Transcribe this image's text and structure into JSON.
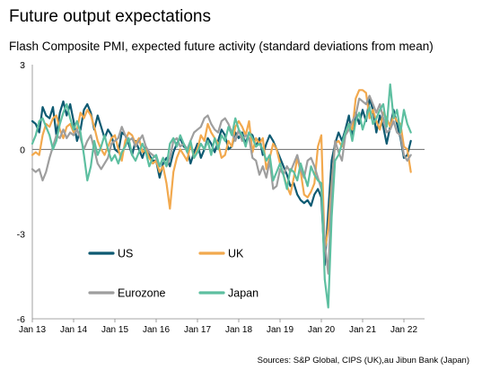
{
  "title": "Future output expectations",
  "subtitle": "Flash Composite PMI, expected future activity (standard deviations from mean)",
  "source": "Sources: S&P Global, CIPS (UK),au Jibun Bank (Japan)",
  "chart_data": {
    "type": "line",
    "title": "Future output expectations",
    "subtitle": "Flash Composite PMI, expected future activity (standard deviations from mean)",
    "xlabel": "",
    "ylabel": "",
    "ylim": [
      -6,
      3
    ],
    "yticks": [
      3,
      0,
      -3,
      -6
    ],
    "xlim": [
      "2013-01",
      "2022-07"
    ],
    "xtick_labels": [
      "Jan 13",
      "Jan 14",
      "Jan 15",
      "Jan 16",
      "Jan 17",
      "Jan 18",
      "Jan 19",
      "Jan 20",
      "Jan 21",
      "Jan 22"
    ],
    "grid": false,
    "legend_position": "bottom-left",
    "series": [
      {
        "name": "US",
        "color": "#0e5a72",
        "start": "2013-01",
        "frequency": "monthly",
        "values": [
          1.0,
          0.9,
          0.6,
          1.5,
          1.2,
          1.1,
          1.5,
          0.5,
          1.3,
          1.7,
          1.2,
          1.6,
          1.0,
          0.3,
          0.7,
          1.4,
          1.6,
          1.3,
          0.7,
          1.2,
          0.8,
          0.4,
          0.7,
          0.5,
          0.0,
          -0.1,
          0.6,
          0.5,
          0.2,
          -0.2,
          0.3,
          0.0,
          -0.3,
          0.1,
          -0.2,
          -0.4,
          -0.4,
          -1.0,
          -0.5,
          -0.3,
          -0.6,
          -0.1,
          0.2,
          0.4,
          0.1,
          0.0,
          -0.5,
          -0.1,
          0.2,
          -0.3,
          0.0,
          0.4,
          0.2,
          -0.1,
          0.3,
          0.7,
          0.5,
          0.0,
          0.1,
          0.6,
          0.4,
          0.6,
          0.2,
          0.6,
          0.5,
          0.1,
          0.4,
          -0.2,
          0.2,
          0.5,
          0.3,
          0.0,
          -0.3,
          -0.6,
          -0.9,
          -1.3,
          -1.2,
          -1.6,
          -1.8,
          -1.9,
          -1.8,
          -2.0,
          -1.6,
          -1.4,
          -1.7,
          -4.1,
          -2.2,
          -0.4,
          0.2,
          0.6,
          0.3,
          0.7,
          1.2,
          0.4,
          1.3,
          0.9,
          1.4,
          1.0,
          1.8,
          1.4,
          0.6,
          1.2,
          0.8,
          0.2,
          0.8,
          1.4,
          0.9,
          0.4,
          -0.3,
          -0.2,
          0.3
        ]
      },
      {
        "name": "UK",
        "color": "#f2a94e",
        "start": "2013-01",
        "frequency": "monthly",
        "values": [
          -0.2,
          -0.1,
          -0.2,
          0.5,
          0.9,
          0.8,
          1.1,
          1.2,
          0.7,
          0.4,
          0.8,
          0.9,
          0.6,
          0.7,
          1.3,
          1.1,
          1.4,
          1.2,
          0.8,
          0.3,
          0.0,
          -0.2,
          0.1,
          0.4,
          0.5,
          0.0,
          -0.4,
          0.3,
          0.6,
          0.5,
          0.2,
          0.4,
          -0.1,
          0.0,
          -0.3,
          -0.5,
          -0.4,
          -0.8,
          -0.6,
          -1.2,
          -2.1,
          -0.8,
          -0.3,
          0.0,
          -0.2,
          -0.4,
          0.2,
          -0.3,
          0.0,
          0.5,
          0.3,
          0.9,
          0.6,
          0.4,
          0.2,
          -0.3,
          -0.2,
          0.3,
          0.1,
          0.8,
          1.0,
          0.8,
          0.5,
          1.0,
          -0.1,
          0.4,
          0.2,
          0.4,
          -0.7,
          -0.3,
          0.2,
          0.0,
          -0.5,
          -0.9,
          -1.3,
          -1.6,
          -1.0,
          -0.3,
          -0.8,
          -1.6,
          -1.7,
          -1.5,
          -1.2,
          0.1,
          0.5,
          -3.6,
          -2.8,
          -1.2,
          0.2,
          0.3,
          0.1,
          0.6,
          0.9,
          0.7,
          1.8,
          2.1,
          2.1,
          2.0,
          1.1,
          1.4,
          1.0,
          0.7,
          1.3,
          1.1,
          0.8,
          1.2,
          1.0,
          0.9,
          0.1,
          0.0,
          -0.8
        ]
      },
      {
        "name": "Eurozone",
        "color": "#9e9e9e",
        "start": "2013-01",
        "frequency": "monthly",
        "values": [
          -0.7,
          -0.8,
          -0.7,
          -1.1,
          -0.8,
          -0.3,
          0.1,
          0.5,
          0.4,
          0.7,
          0.4,
          0.6,
          0.5,
          0.7,
          0.4,
          0.0,
          0.3,
          0.5,
          0.0,
          -0.5,
          -0.7,
          -0.5,
          -0.3,
          0.2,
          0.3,
          0.4,
          0.8,
          0.5,
          0.3,
          0.4,
          0.1,
          0.3,
          0.5,
          0.1,
          -0.1,
          -0.2,
          -0.3,
          -0.6,
          -0.3,
          -0.6,
          -0.3,
          0.3,
          0.4,
          0.1,
          0.2,
          0.0,
          0.3,
          0.6,
          0.7,
          0.8,
          1.1,
          1.2,
          0.9,
          0.7,
          0.6,
          1.0,
          1.1,
          0.9,
          0.6,
          0.3,
          0.7,
          0.3,
          0.5,
          0.4,
          -0.3,
          -0.4,
          -0.9,
          -0.6,
          -1.0,
          -0.4,
          -1.4,
          -1.3,
          -0.7,
          -0.9,
          -0.6,
          -0.8,
          -0.5,
          -0.2,
          -0.7,
          -1.0,
          -0.4,
          -0.3,
          -0.6,
          -1.0,
          -1.4,
          -3.3,
          -4.4,
          -1.4,
          0.3,
          -0.1,
          -0.4,
          0.5,
          0.7,
          1.0,
          1.2,
          1.8,
          1.7,
          1.6,
          1.9,
          1.6,
          1.3,
          1.6,
          1.1,
          0.6,
          0.7,
          1.0,
          0.6,
          0.5,
          -0.2,
          -0.4,
          -0.2
        ]
      },
      {
        "name": "Japan",
        "color": "#5dbfa0",
        "start": "2013-01",
        "frequency": "monthly",
        "values": [
          0.2,
          0.5,
          1.0,
          1.1,
          0.8,
          0.5,
          0.0,
          0.3,
          0.9,
          1.3,
          1.6,
          1.1,
          0.7,
          1.0,
          0.6,
          -0.2,
          -1.1,
          -0.6,
          0.3,
          -0.2,
          0.1,
          0.5,
          0.0,
          -0.4,
          -0.2,
          -0.5,
          -0.1,
          0.1,
          0.4,
          -0.2,
          -0.4,
          -0.1,
          0.2,
          -0.1,
          -0.6,
          -0.3,
          -0.2,
          -0.6,
          -0.3,
          -0.6,
          0.2,
          0.4,
          0.1,
          0.5,
          0.2,
          -0.1,
          0.3,
          -0.3,
          -0.1,
          0.2,
          0.0,
          0.3,
          -0.2,
          0.4,
          0.0,
          0.5,
          0.3,
          0.8,
          0.5,
          1.1,
          0.7,
          0.5,
          0.1,
          0.6,
          0.4,
          0.1,
          0.2,
          0.0,
          -0.4,
          -0.2,
          -1.1,
          -0.8,
          -0.5,
          -0.9,
          -1.4,
          -0.7,
          -0.8,
          -1.1,
          -0.5,
          -0.9,
          -1.3,
          -0.6,
          -0.9,
          -1.1,
          -1.2,
          -4.6,
          -5.6,
          -2.4,
          -0.4,
          -0.2,
          0.2,
          0.6,
          0.9,
          0.3,
          1.0,
          1.3,
          0.7,
          1.1,
          1.5,
          0.9,
          1.1,
          1.4,
          1.6,
          0.8,
          2.3,
          1.1,
          1.4,
          0.6,
          1.4,
          0.9,
          0.6
        ]
      }
    ]
  }
}
